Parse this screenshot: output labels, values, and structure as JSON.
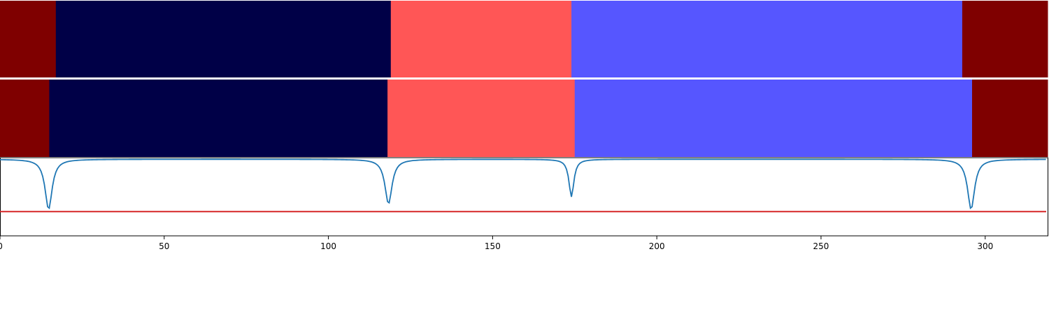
{
  "chart_data": {
    "type": "segmentation-timeline",
    "x_range": [
      0,
      319
    ],
    "x_ticks": [
      0,
      50,
      100,
      150,
      200,
      250,
      300
    ],
    "x_tick_labels": [
      "0",
      "50",
      "100",
      "150",
      "200",
      "250",
      "300"
    ],
    "tracks": [
      {
        "segments": [
          {
            "start": 0,
            "end": 17,
            "color": "#7f0000"
          },
          {
            "start": 17,
            "end": 119,
            "color": "#000047"
          },
          {
            "start": 119,
            "end": 174,
            "color": "#ff5656"
          },
          {
            "start": 174,
            "end": 293,
            "color": "#5656ff"
          },
          {
            "start": 293,
            "end": 319,
            "color": "#7f0000"
          }
        ]
      },
      {
        "segments": [
          {
            "start": 0,
            "end": 15,
            "color": "#7f0000"
          },
          {
            "start": 15,
            "end": 118,
            "color": "#000047"
          },
          {
            "start": 118,
            "end": 175,
            "color": "#ff5656"
          },
          {
            "start": 175,
            "end": 296,
            "color": "#5656ff"
          },
          {
            "start": 296,
            "end": 319,
            "color": "#7f0000"
          }
        ]
      }
    ],
    "signal": {
      "ylim": [
        0,
        1
      ],
      "color": "#1f77b4",
      "baseline": 0.98,
      "dips": [
        {
          "x": 14.8,
          "depth": 0.64,
          "width": 1.3
        },
        {
          "x": 118.3,
          "depth": 0.57,
          "width": 1.3
        },
        {
          "x": 174.0,
          "depth": 0.48,
          "width": 0.9
        },
        {
          "x": 295.7,
          "depth": 0.64,
          "width": 1.3
        }
      ],
      "threshold": 0.31,
      "threshold_color": "#d62728"
    }
  }
}
